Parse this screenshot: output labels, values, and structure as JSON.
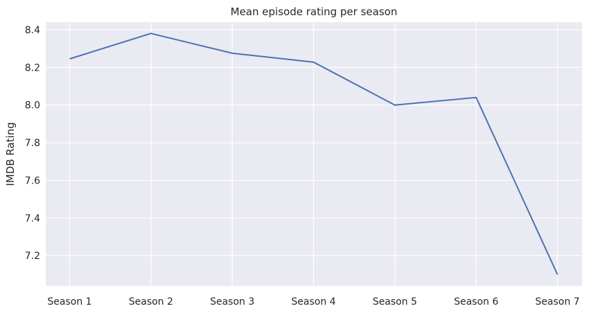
{
  "chart_data": {
    "type": "line",
    "title": "Mean episode rating per season",
    "xlabel": "",
    "ylabel": "IMDB Rating",
    "categories": [
      "Season 1",
      "Season 2",
      "Season 3",
      "Season 4",
      "Season 5",
      "Season 6",
      "Season 7"
    ],
    "series": [
      {
        "values": [
          8.245,
          8.38,
          8.275,
          8.228,
          8.0,
          8.04,
          7.1
        ],
        "color": "#4c72b0"
      }
    ],
    "yticks": [
      7.2,
      7.4,
      7.6,
      7.8,
      8.0,
      8.2,
      8.4
    ],
    "ytick_labels": [
      "7.2",
      "7.4",
      "7.6",
      "7.8",
      "8.0",
      "8.2",
      "8.4"
    ],
    "ylim": [
      7.039,
      8.44
    ],
    "grid": true,
    "background": "#eaeaf2",
    "grid_color": "#ffffff"
  }
}
